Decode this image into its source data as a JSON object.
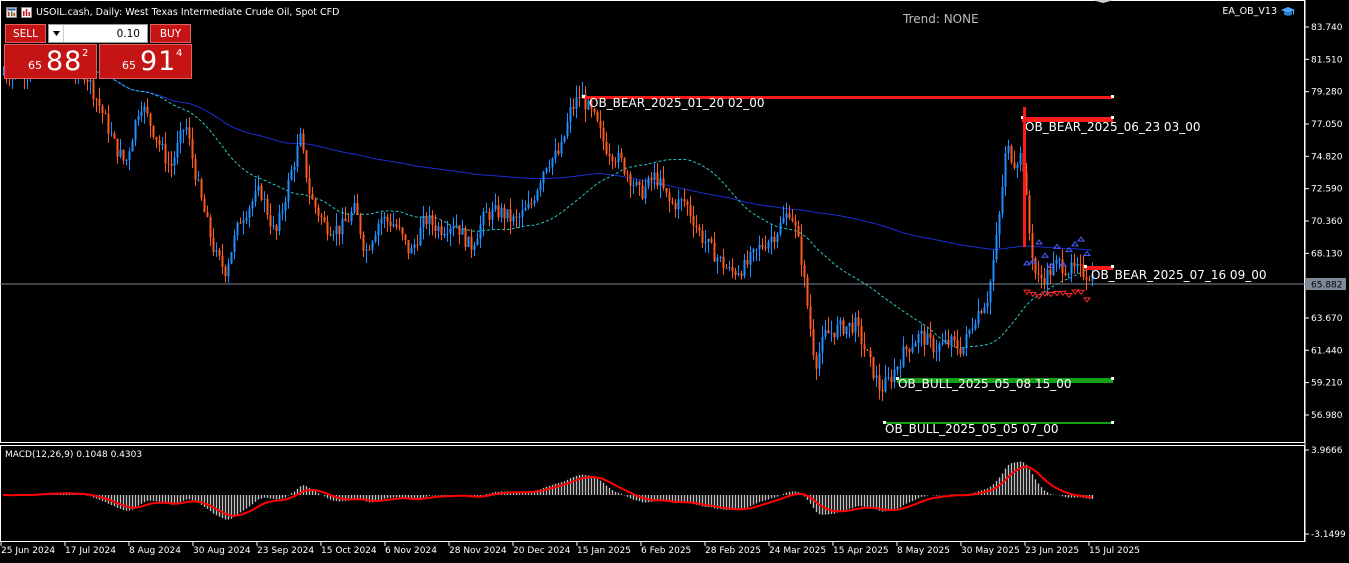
{
  "window": {
    "symbol_title": "USOIL.cash, Daily:  West Texas Intermediate Crude Oil, Spot CFD",
    "trend_label": "Trend: NONE",
    "expert_name": "EA_OB_V13"
  },
  "trade_panel": {
    "sell_label": "SELL",
    "buy_label": "BUY",
    "lot_value": "0.10",
    "bid_prefix": "65",
    "bid_big": "88",
    "bid_sup": "2",
    "ask_prefix": "65",
    "ask_big": "91",
    "ask_sup": "4"
  },
  "colors": {
    "background": "#000000",
    "bull_candle": "#1e90ff",
    "bear_candle": "#ff5a1e",
    "ma_slow": "#1a2fd1",
    "ma_fast": "#2ec4c4",
    "bear_ob": "#ff1a1a",
    "bull_ob": "#14a014",
    "macd_hist": "#c0c0c0",
    "macd_signal": "#ff0000",
    "current_price_line": "#7f8a99"
  },
  "price_axis": {
    "ticks": [
      "83.740",
      "81.510",
      "79.280",
      "77.050",
      "74.820",
      "72.590",
      "70.360",
      "68.130",
      "65.882",
      "63.670",
      "61.440",
      "59.210",
      "56.980"
    ],
    "current_price": "65.882"
  },
  "order_blocks": [
    {
      "label": "OB_BEAR_2025_01_20 02_00",
      "type": "bear"
    },
    {
      "label": "OB_BEAR_2025_06_23 03_00",
      "type": "bear"
    },
    {
      "label": "OB_BEAR_2025_07_16 09_00",
      "type": "bear"
    },
    {
      "label": "OB_BULL_2025_05_08 15_00",
      "type": "bull"
    },
    {
      "label": "OB_BULL_2025_05_05 07_00",
      "type": "bull"
    }
  ],
  "macd": {
    "label": "MACD(12,26,9) 0.1048 0.4303",
    "axis_top": "3.9666",
    "axis_bottom": "-3.1499"
  },
  "time_axis": [
    "25 Jun 2024",
    "17 Jul 2024",
    "8 Aug 2024",
    "30 Aug 2024",
    "23 Sep 2024",
    "15 Oct 2024",
    "6 Nov 2024",
    "28 Nov 2024",
    "20 Dec 2024",
    "15 Jan 2025",
    "6 Feb 2025",
    "28 Feb 2025",
    "24 Mar 2025",
    "15 Apr 2025",
    "8 May 2025",
    "30 May 2025",
    "23 Jun 2025",
    "15 Jul 2025"
  ]
}
